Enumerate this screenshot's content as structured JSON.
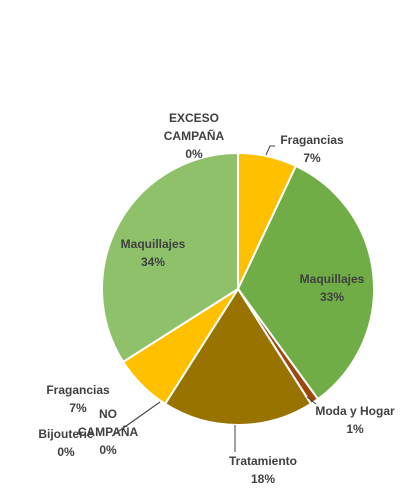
{
  "chart_data": {
    "type": "pie",
    "title": "",
    "legend": "none",
    "slices": [
      {
        "label": "EXCESO CAMPAÑA",
        "value": 0,
        "value_label": "0%",
        "color": "#ffc000"
      },
      {
        "label": "Fragancias",
        "value": 7,
        "value_label": "7%",
        "color": "#ffc000"
      },
      {
        "label": "Maquillajes",
        "value": 33,
        "value_label": "33%",
        "color": "#70ad47"
      },
      {
        "label": "Moda y Hogar",
        "value": 1,
        "value_label": "1%",
        "color": "#9e480e"
      },
      {
        "label": "Tratamiento",
        "value": 18,
        "value_label": "18%",
        "color": "#997300"
      },
      {
        "label": "NO CAMPAÑA",
        "value": 0,
        "value_label": "0%",
        "color": "#ffc000"
      },
      {
        "label": "Bijouterie",
        "value": 0,
        "value_label": "0%",
        "color": "#ffc000"
      },
      {
        "label": "Fragancias",
        "value": 7,
        "value_label": "7%",
        "color": "#ffc000"
      },
      {
        "label": "Maquillajes",
        "value": 34,
        "value_label": "34%",
        "color": "#8fc16b"
      }
    ]
  }
}
